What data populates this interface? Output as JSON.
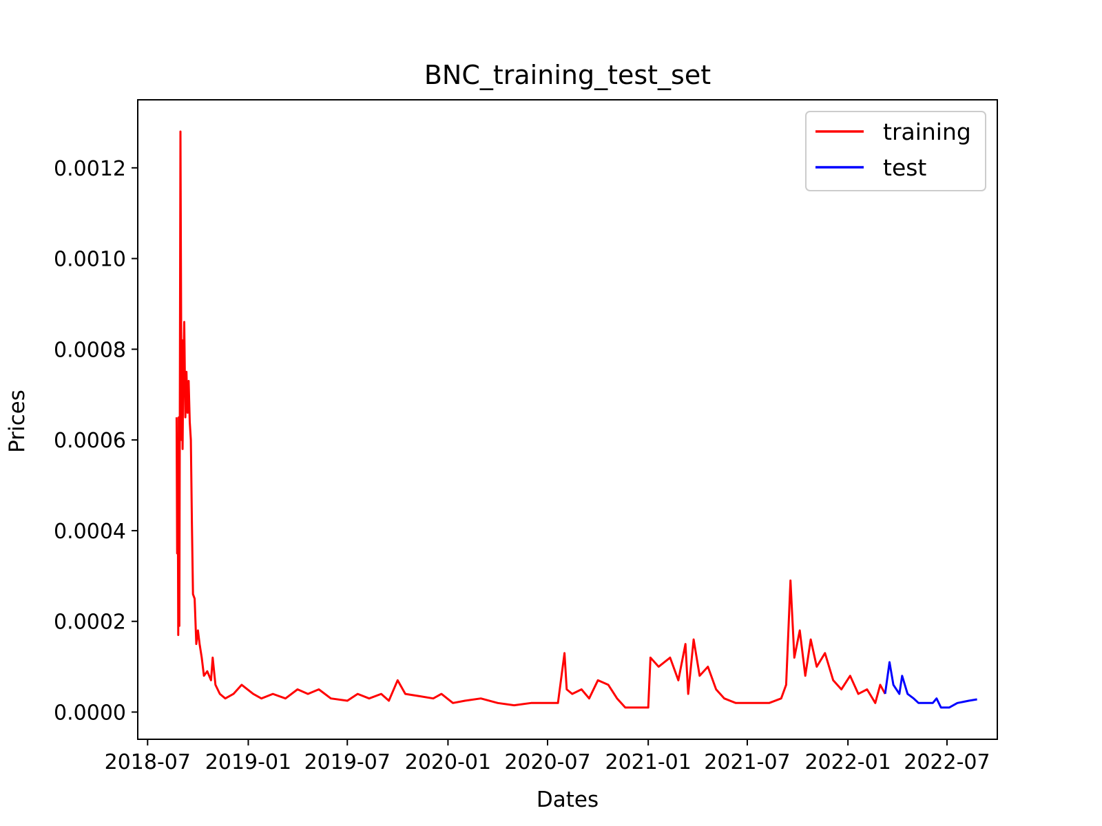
{
  "chart_data": {
    "type": "line",
    "title": "BNC_training_test_set",
    "xlabel": "Dates",
    "ylabel": "Prices",
    "x_ticks": [
      "2018-07",
      "2019-01",
      "2019-07",
      "2020-01",
      "2020-07",
      "2021-01",
      "2021-07",
      "2022-01",
      "2022-07"
    ],
    "y_ticks": [
      "0.0000",
      "0.0002",
      "0.0004",
      "0.0006",
      "0.0008",
      "0.0010",
      "0.0012"
    ],
    "xlim": [
      "2018-06-13",
      "2022-10-01"
    ],
    "ylim": [
      -6e-05,
      0.00135
    ],
    "grid": false,
    "legend_position": "top-right",
    "series": [
      {
        "name": "training",
        "color": "#ff0000",
        "points": [
          [
            "2018-08-23",
            0.00065
          ],
          [
            "2018-08-24",
            0.00035
          ],
          [
            "2018-08-25",
            0.00055
          ],
          [
            "2018-08-26",
            0.00017
          ],
          [
            "2018-08-27",
            0.00065
          ],
          [
            "2018-08-28",
            0.00019
          ],
          [
            "2018-08-30",
            0.00128
          ],
          [
            "2018-09-01",
            0.0006
          ],
          [
            "2018-09-02",
            0.00082
          ],
          [
            "2018-09-03",
            0.00058
          ],
          [
            "2018-09-04",
            0.00072
          ],
          [
            "2018-09-06",
            0.00086
          ],
          [
            "2018-09-08",
            0.00065
          ],
          [
            "2018-09-10",
            0.00075
          ],
          [
            "2018-09-12",
            0.00066
          ],
          [
            "2018-09-14",
            0.00073
          ],
          [
            "2018-09-16",
            0.00064
          ],
          [
            "2018-09-18",
            0.0006
          ],
          [
            "2018-09-20",
            0.00042
          ],
          [
            "2018-09-22",
            0.00026
          ],
          [
            "2018-09-25",
            0.00025
          ],
          [
            "2018-09-28",
            0.00015
          ],
          [
            "2018-10-01",
            0.00018
          ],
          [
            "2018-10-04",
            0.00015
          ],
          [
            "2018-10-08",
            0.00012
          ],
          [
            "2018-10-12",
            8e-05
          ],
          [
            "2018-10-18",
            9e-05
          ],
          [
            "2018-10-25",
            7e-05
          ],
          [
            "2018-10-28",
            0.00012
          ],
          [
            "2018-11-02",
            6e-05
          ],
          [
            "2018-11-10",
            4e-05
          ],
          [
            "2018-11-20",
            3e-05
          ],
          [
            "2018-12-05",
            4e-05
          ],
          [
            "2018-12-20",
            6e-05
          ],
          [
            "2019-01-10",
            4e-05
          ],
          [
            "2019-01-25",
            3e-05
          ],
          [
            "2019-02-15",
            4e-05
          ],
          [
            "2019-03-10",
            3e-05
          ],
          [
            "2019-04-01",
            5e-05
          ],
          [
            "2019-04-20",
            4e-05
          ],
          [
            "2019-05-10",
            5e-05
          ],
          [
            "2019-06-01",
            3e-05
          ],
          [
            "2019-07-01",
            2.5e-05
          ],
          [
            "2019-07-20",
            4e-05
          ],
          [
            "2019-08-10",
            3e-05
          ],
          [
            "2019-09-01",
            4e-05
          ],
          [
            "2019-09-15",
            2.5e-05
          ],
          [
            "2019-10-01",
            7e-05
          ],
          [
            "2019-10-15",
            4e-05
          ],
          [
            "2019-11-10",
            3.5e-05
          ],
          [
            "2019-12-05",
            3e-05
          ],
          [
            "2019-12-20",
            4e-05
          ],
          [
            "2020-01-10",
            2e-05
          ],
          [
            "2020-02-01",
            2.5e-05
          ],
          [
            "2020-03-01",
            3e-05
          ],
          [
            "2020-04-01",
            2e-05
          ],
          [
            "2020-05-01",
            1.5e-05
          ],
          [
            "2020-06-01",
            2e-05
          ],
          [
            "2020-07-01",
            2e-05
          ],
          [
            "2020-07-20",
            2e-05
          ],
          [
            "2020-08-01",
            0.00013
          ],
          [
            "2020-08-05",
            5e-05
          ],
          [
            "2020-08-15",
            4e-05
          ],
          [
            "2020-09-01",
            5e-05
          ],
          [
            "2020-09-15",
            3e-05
          ],
          [
            "2020-10-01",
            7e-05
          ],
          [
            "2020-10-20",
            6e-05
          ],
          [
            "2020-11-05",
            3e-05
          ],
          [
            "2020-11-20",
            1e-05
          ],
          [
            "2021-01-01",
            1e-05
          ],
          [
            "2021-01-05",
            0.00012
          ],
          [
            "2021-01-20",
            0.0001
          ],
          [
            "2021-02-10",
            0.00012
          ],
          [
            "2021-02-25",
            7e-05
          ],
          [
            "2021-03-10",
            0.00015
          ],
          [
            "2021-03-15",
            4e-05
          ],
          [
            "2021-03-25",
            0.00016
          ],
          [
            "2021-04-05",
            8e-05
          ],
          [
            "2021-04-20",
            0.0001
          ],
          [
            "2021-05-05",
            5e-05
          ],
          [
            "2021-05-20",
            3e-05
          ],
          [
            "2021-06-10",
            2e-05
          ],
          [
            "2021-07-10",
            2e-05
          ],
          [
            "2021-08-10",
            2e-05
          ],
          [
            "2021-09-01",
            3e-05
          ],
          [
            "2021-09-10",
            6e-05
          ],
          [
            "2021-09-18",
            0.00029
          ],
          [
            "2021-09-25",
            0.00012
          ],
          [
            "2021-10-05",
            0.00018
          ],
          [
            "2021-10-15",
            8e-05
          ],
          [
            "2021-10-25",
            0.00016
          ],
          [
            "2021-11-05",
            0.0001
          ],
          [
            "2021-11-20",
            0.00013
          ],
          [
            "2021-12-05",
            7e-05
          ],
          [
            "2021-12-20",
            5e-05
          ],
          [
            "2022-01-05",
            8e-05
          ],
          [
            "2022-01-20",
            4e-05
          ],
          [
            "2022-02-05",
            5e-05
          ],
          [
            "2022-02-20",
            2e-05
          ],
          [
            "2022-03-01",
            6e-05
          ],
          [
            "2022-03-10",
            4e-05
          ]
        ]
      },
      {
        "name": "test",
        "color": "#0000ff",
        "points": [
          [
            "2022-03-10",
            4e-05
          ],
          [
            "2022-03-18",
            0.00011
          ],
          [
            "2022-03-25",
            6e-05
          ],
          [
            "2022-04-05",
            4e-05
          ],
          [
            "2022-04-10",
            8e-05
          ],
          [
            "2022-04-20",
            4e-05
          ],
          [
            "2022-05-01",
            3e-05
          ],
          [
            "2022-05-10",
            2e-05
          ],
          [
            "2022-05-20",
            2e-05
          ],
          [
            "2022-06-05",
            2e-05
          ],
          [
            "2022-06-12",
            3e-05
          ],
          [
            "2022-06-20",
            1e-05
          ],
          [
            "2022-07-05",
            1e-05
          ],
          [
            "2022-07-20",
            2e-05
          ],
          [
            "2022-08-10",
            2.5e-05
          ],
          [
            "2022-08-25",
            2.8e-05
          ]
        ]
      }
    ]
  }
}
